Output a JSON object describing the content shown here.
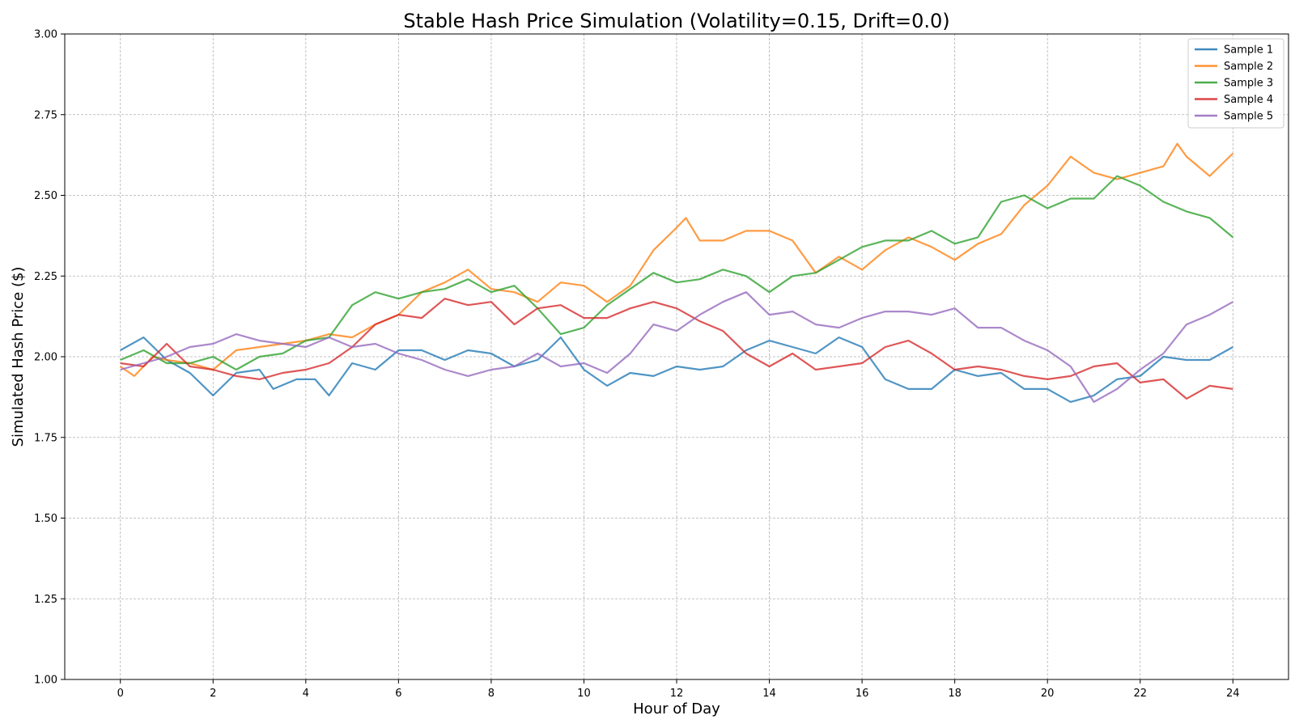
{
  "chart_data": {
    "type": "line",
    "title": "Stable Hash Price Simulation (Volatility=0.15, Drift=0.0)",
    "xlabel": "Hour of Day",
    "ylabel": "Simulated Hash Price ($)",
    "xlim": [
      -1.2,
      25.2
    ],
    "ylim": [
      1.0,
      3.0
    ],
    "xticks": [
      "0",
      "2",
      "4",
      "6",
      "8",
      "10",
      "12",
      "14",
      "16",
      "18",
      "20",
      "22",
      "24"
    ],
    "yticks": [
      "1.00",
      "1.25",
      "1.50",
      "1.75",
      "2.00",
      "2.25",
      "2.50",
      "2.75",
      "3.00"
    ],
    "grid": true,
    "legend_position": "top-right",
    "series": [
      {
        "name": "Sample 1",
        "color": "#1f77b4",
        "points": [
          [
            0,
            2.02
          ],
          [
            0.5,
            2.06
          ],
          [
            1,
            1.99
          ],
          [
            1.5,
            1.95
          ],
          [
            2,
            1.88
          ],
          [
            2.5,
            1.95
          ],
          [
            3,
            1.96
          ],
          [
            3.3,
            1.9
          ],
          [
            3.8,
            1.93
          ],
          [
            4.2,
            1.93
          ],
          [
            4.5,
            1.88
          ],
          [
            5,
            1.98
          ],
          [
            5.5,
            1.96
          ],
          [
            6,
            2.02
          ],
          [
            6.5,
            2.02
          ],
          [
            7,
            1.99
          ],
          [
            7.5,
            2.02
          ],
          [
            8,
            2.01
          ],
          [
            8.5,
            1.97
          ],
          [
            9,
            1.99
          ],
          [
            9.5,
            2.06
          ],
          [
            10,
            1.96
          ],
          [
            10.5,
            1.91
          ],
          [
            11,
            1.95
          ],
          [
            11.5,
            1.94
          ],
          [
            12,
            1.97
          ],
          [
            12.5,
            1.96
          ],
          [
            13,
            1.97
          ],
          [
            13.5,
            2.02
          ],
          [
            14,
            2.05
          ],
          [
            14.5,
            2.03
          ],
          [
            15,
            2.01
          ],
          [
            15.5,
            2.06
          ],
          [
            16,
            2.03
          ],
          [
            16.5,
            1.93
          ],
          [
            17,
            1.9
          ],
          [
            17.5,
            1.9
          ],
          [
            18,
            1.96
          ],
          [
            18.5,
            1.94
          ],
          [
            19,
            1.95
          ],
          [
            19.5,
            1.9
          ],
          [
            20,
            1.9
          ],
          [
            20.5,
            1.86
          ],
          [
            21,
            1.88
          ],
          [
            21.5,
            1.93
          ],
          [
            22,
            1.94
          ],
          [
            22.5,
            2.0
          ],
          [
            23,
            1.99
          ],
          [
            23.5,
            1.99
          ],
          [
            24,
            2.03
          ]
        ]
      },
      {
        "name": "Sample 2",
        "color": "#ff7f0e",
        "points": [
          [
            0,
            1.97
          ],
          [
            0.3,
            1.94
          ],
          [
            0.7,
            2.0
          ],
          [
            1,
            1.99
          ],
          [
            1.5,
            1.98
          ],
          [
            2,
            1.96
          ],
          [
            2.5,
            2.02
          ],
          [
            3,
            2.03
          ],
          [
            3.5,
            2.04
          ],
          [
            4,
            2.05
          ],
          [
            4.5,
            2.07
          ],
          [
            5,
            2.06
          ],
          [
            5.5,
            2.1
          ],
          [
            6,
            2.13
          ],
          [
            6.5,
            2.2
          ],
          [
            7,
            2.23
          ],
          [
            7.5,
            2.27
          ],
          [
            8,
            2.21
          ],
          [
            8.5,
            2.2
          ],
          [
            9,
            2.17
          ],
          [
            9.5,
            2.23
          ],
          [
            10,
            2.22
          ],
          [
            10.5,
            2.17
          ],
          [
            11,
            2.22
          ],
          [
            11.5,
            2.33
          ],
          [
            12,
            2.4
          ],
          [
            12.2,
            2.43
          ],
          [
            12.5,
            2.36
          ],
          [
            13,
            2.36
          ],
          [
            13.5,
            2.39
          ],
          [
            14,
            2.39
          ],
          [
            14.5,
            2.36
          ],
          [
            15,
            2.26
          ],
          [
            15.5,
            2.31
          ],
          [
            16,
            2.27
          ],
          [
            16.5,
            2.33
          ],
          [
            17,
            2.37
          ],
          [
            17.5,
            2.34
          ],
          [
            18,
            2.3
          ],
          [
            18.5,
            2.35
          ],
          [
            19,
            2.38
          ],
          [
            19.5,
            2.47
          ],
          [
            20,
            2.53
          ],
          [
            20.5,
            2.62
          ],
          [
            21,
            2.57
          ],
          [
            21.5,
            2.55
          ],
          [
            22,
            2.57
          ],
          [
            22.5,
            2.59
          ],
          [
            22.8,
            2.66
          ],
          [
            23,
            2.62
          ],
          [
            23.5,
            2.56
          ],
          [
            24,
            2.63
          ]
        ]
      },
      {
        "name": "Sample 3",
        "color": "#2ca02c",
        "points": [
          [
            0,
            1.99
          ],
          [
            0.5,
            2.02
          ],
          [
            1,
            1.98
          ],
          [
            1.5,
            1.98
          ],
          [
            2,
            2.0
          ],
          [
            2.5,
            1.96
          ],
          [
            3,
            2.0
          ],
          [
            3.5,
            2.01
          ],
          [
            4,
            2.05
          ],
          [
            4.5,
            2.06
          ],
          [
            5,
            2.16
          ],
          [
            5.5,
            2.2
          ],
          [
            6,
            2.18
          ],
          [
            6.5,
            2.2
          ],
          [
            7,
            2.21
          ],
          [
            7.5,
            2.24
          ],
          [
            8,
            2.2
          ],
          [
            8.5,
            2.22
          ],
          [
            9,
            2.15
          ],
          [
            9.5,
            2.07
          ],
          [
            10,
            2.09
          ],
          [
            10.5,
            2.16
          ],
          [
            11,
            2.21
          ],
          [
            11.5,
            2.26
          ],
          [
            12,
            2.23
          ],
          [
            12.5,
            2.24
          ],
          [
            13,
            2.27
          ],
          [
            13.5,
            2.25
          ],
          [
            14,
            2.2
          ],
          [
            14.5,
            2.25
          ],
          [
            15,
            2.26
          ],
          [
            15.5,
            2.3
          ],
          [
            16,
            2.34
          ],
          [
            16.5,
            2.36
          ],
          [
            17,
            2.36
          ],
          [
            17.5,
            2.39
          ],
          [
            18,
            2.35
          ],
          [
            18.5,
            2.37
          ],
          [
            19,
            2.48
          ],
          [
            19.5,
            2.5
          ],
          [
            20,
            2.46
          ],
          [
            20.5,
            2.49
          ],
          [
            21,
            2.49
          ],
          [
            21.5,
            2.56
          ],
          [
            22,
            2.53
          ],
          [
            22.5,
            2.48
          ],
          [
            23,
            2.45
          ],
          [
            23.5,
            2.43
          ],
          [
            24,
            2.37
          ]
        ]
      },
      {
        "name": "Sample 4",
        "color": "#d62728",
        "points": [
          [
            0,
            1.98
          ],
          [
            0.5,
            1.97
          ],
          [
            1,
            2.04
          ],
          [
            1.5,
            1.97
          ],
          [
            2,
            1.96
          ],
          [
            2.5,
            1.94
          ],
          [
            3,
            1.93
          ],
          [
            3.5,
            1.95
          ],
          [
            4,
            1.96
          ],
          [
            4.5,
            1.98
          ],
          [
            5,
            2.03
          ],
          [
            5.5,
            2.1
          ],
          [
            6,
            2.13
          ],
          [
            6.5,
            2.12
          ],
          [
            7,
            2.18
          ],
          [
            7.5,
            2.16
          ],
          [
            8,
            2.17
          ],
          [
            8.5,
            2.1
          ],
          [
            9,
            2.15
          ],
          [
            9.5,
            2.16
          ],
          [
            10,
            2.12
          ],
          [
            10.5,
            2.12
          ],
          [
            11,
            2.15
          ],
          [
            11.5,
            2.17
          ],
          [
            12,
            2.15
          ],
          [
            12.5,
            2.11
          ],
          [
            13,
            2.08
          ],
          [
            13.5,
            2.01
          ],
          [
            14,
            1.97
          ],
          [
            14.5,
            2.01
          ],
          [
            15,
            1.96
          ],
          [
            15.5,
            1.97
          ],
          [
            16,
            1.98
          ],
          [
            16.5,
            2.03
          ],
          [
            17,
            2.05
          ],
          [
            17.5,
            2.01
          ],
          [
            18,
            1.96
          ],
          [
            18.5,
            1.97
          ],
          [
            19,
            1.96
          ],
          [
            19.5,
            1.94
          ],
          [
            20,
            1.93
          ],
          [
            20.5,
            1.94
          ],
          [
            21,
            1.97
          ],
          [
            21.5,
            1.98
          ],
          [
            22,
            1.92
          ],
          [
            22.5,
            1.93
          ],
          [
            23,
            1.87
          ],
          [
            23.5,
            1.91
          ],
          [
            24,
            1.9
          ]
        ]
      },
      {
        "name": "Sample 5",
        "color": "#9467bd",
        "points": [
          [
            0,
            1.96
          ],
          [
            0.5,
            1.98
          ],
          [
            1,
            2.0
          ],
          [
            1.5,
            2.03
          ],
          [
            2,
            2.04
          ],
          [
            2.5,
            2.07
          ],
          [
            3,
            2.05
          ],
          [
            3.5,
            2.04
          ],
          [
            4,
            2.03
          ],
          [
            4.5,
            2.06
          ],
          [
            5,
            2.03
          ],
          [
            5.5,
            2.04
          ],
          [
            6,
            2.01
          ],
          [
            6.5,
            1.99
          ],
          [
            7,
            1.96
          ],
          [
            7.5,
            1.94
          ],
          [
            8,
            1.96
          ],
          [
            8.5,
            1.97
          ],
          [
            9,
            2.01
          ],
          [
            9.5,
            1.97
          ],
          [
            10,
            1.98
          ],
          [
            10.5,
            1.95
          ],
          [
            11,
            2.01
          ],
          [
            11.5,
            2.1
          ],
          [
            12,
            2.08
          ],
          [
            12.5,
            2.13
          ],
          [
            13,
            2.17
          ],
          [
            13.5,
            2.2
          ],
          [
            14,
            2.13
          ],
          [
            14.5,
            2.14
          ],
          [
            15,
            2.1
          ],
          [
            15.5,
            2.09
          ],
          [
            16,
            2.12
          ],
          [
            16.5,
            2.14
          ],
          [
            17,
            2.14
          ],
          [
            17.5,
            2.13
          ],
          [
            18,
            2.15
          ],
          [
            18.5,
            2.09
          ],
          [
            19,
            2.09
          ],
          [
            19.5,
            2.05
          ],
          [
            20,
            2.02
          ],
          [
            20.5,
            1.97
          ],
          [
            21,
            1.86
          ],
          [
            21.5,
            1.9
          ],
          [
            22,
            1.96
          ],
          [
            22.5,
            2.01
          ],
          [
            23,
            2.1
          ],
          [
            23.5,
            2.13
          ],
          [
            24,
            2.17
          ]
        ]
      }
    ]
  }
}
